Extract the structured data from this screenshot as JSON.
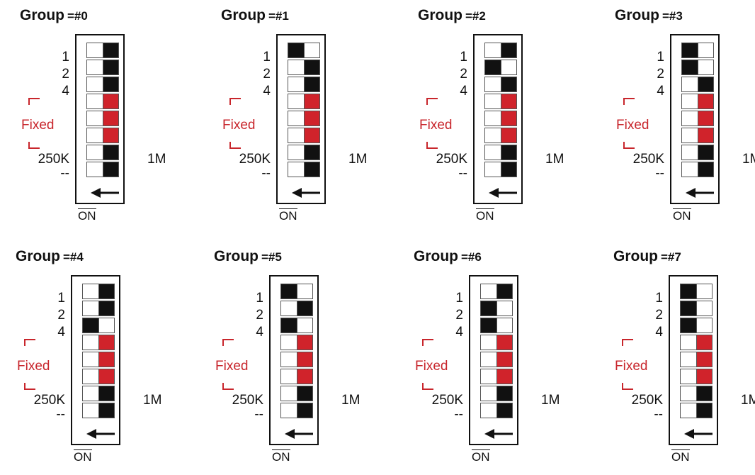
{
  "labels": {
    "title_prefix": "Group",
    "bit1": "1",
    "bit2": "2",
    "bit4": "4",
    "fixed": "Fixed",
    "speed_low": "250K",
    "speed_high": "1M",
    "last": "--",
    "on": "ON"
  },
  "colors": {
    "on_block": "#111111",
    "fixed_block": "#d0232b",
    "fixed_label": "#c8262c",
    "empty": "#ffffff"
  },
  "groups": [
    {
      "number": "=#0",
      "switches": [
        "right",
        "right",
        "right",
        "fixed",
        "fixed",
        "fixed",
        "right",
        "right"
      ]
    },
    {
      "number": "=#1",
      "switches": [
        "left",
        "right",
        "right",
        "fixed",
        "fixed",
        "fixed",
        "right",
        "right"
      ]
    },
    {
      "number": "=#2",
      "switches": [
        "right",
        "left",
        "right",
        "fixed",
        "fixed",
        "fixed",
        "right",
        "right"
      ]
    },
    {
      "number": "=#3",
      "switches": [
        "left",
        "left",
        "right",
        "fixed",
        "fixed",
        "fixed",
        "right",
        "right"
      ]
    },
    {
      "number": "=#4",
      "switches": [
        "right",
        "right",
        "left",
        "fixed",
        "fixed",
        "fixed",
        "right",
        "right"
      ]
    },
    {
      "number": "=#5",
      "switches": [
        "left",
        "right",
        "left",
        "fixed",
        "fixed",
        "fixed",
        "right",
        "right"
      ]
    },
    {
      "number": "=#6",
      "switches": [
        "right",
        "left",
        "left",
        "fixed",
        "fixed",
        "fixed",
        "right",
        "right"
      ]
    },
    {
      "number": "=#7",
      "switches": [
        "left",
        "left",
        "left",
        "fixed",
        "fixed",
        "fixed",
        "right",
        "right"
      ]
    }
  ]
}
